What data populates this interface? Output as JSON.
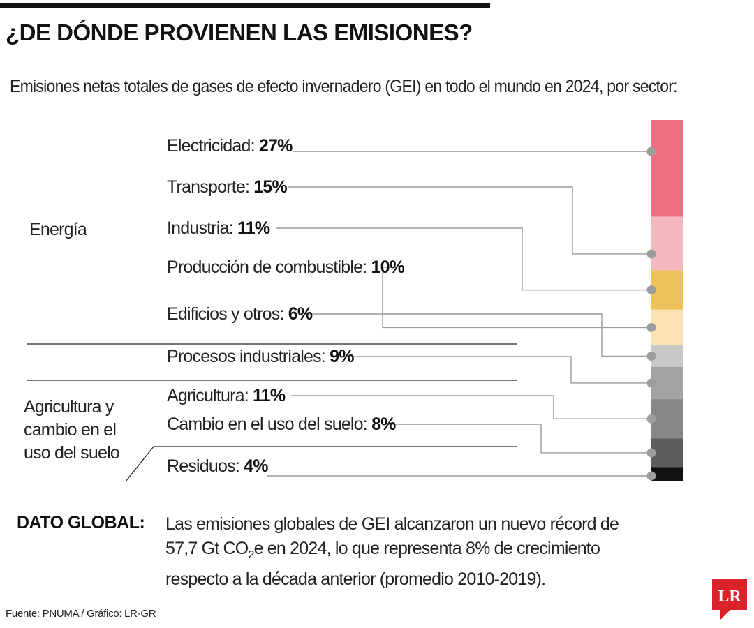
{
  "title": "¿DE DÓNDE PROVIENEN LAS EMISIONES?",
  "subtitle": "Emisiones netas totales de gases de efecto invernadero (GEI) en todo el mundo en 2024, por sector:",
  "chart_data": {
    "type": "bar",
    "orientation": "stacked-vertical",
    "unit": "%",
    "segments": [
      {
        "label": "Electricidad:",
        "value": 27,
        "value_label": "27%",
        "color": "#ec6e7f",
        "group": "Energía"
      },
      {
        "label": "Transporte:",
        "value": 15,
        "value_label": "15%",
        "color": "#f2b9bf",
        "group": "Energía"
      },
      {
        "label": "Industria:",
        "value": 11,
        "value_label": "11%",
        "color": "#ebc35a",
        "group": "Energía"
      },
      {
        "label": "Producción de combustible:",
        "value": 10,
        "value_label": "10%",
        "color": "#fde3b3",
        "group": "Energía"
      },
      {
        "label": "Edificios y otros:",
        "value": 6,
        "value_label": "6%",
        "color": "#c8c8c8",
        "group": "Energía"
      },
      {
        "label": "Procesos industriales:",
        "value": 9,
        "value_label": "9%",
        "color": "#a3a3a3",
        "group": ""
      },
      {
        "label": "Agricultura:",
        "value": 11,
        "value_label": "11%",
        "color": "#878787",
        "group": "Agricultura y cambio en el uso del suelo"
      },
      {
        "label": "Cambio en el uso del suelo:",
        "value": 8,
        "value_label": "8%",
        "color": "#5c5c5c",
        "group": "Agricultura y cambio en el uso del suelo"
      },
      {
        "label": "Residuos:",
        "value": 4,
        "value_label": "4%",
        "color": "#111111",
        "group": ""
      }
    ],
    "groups": [
      {
        "name": "Energía",
        "lines": [
          "Energía"
        ]
      },
      {
        "name": "Agricultura y cambio en el uso del suelo",
        "lines": [
          "Agricultura y",
          "cambio en el",
          "uso del suelo"
        ]
      }
    ],
    "connector_color": "#9a9a9a",
    "dot_color": "#9d9d9d"
  },
  "dato_global": {
    "label": "DATO GLOBAL:",
    "line1": "Las emisiones globales de GEI alcanzaron un nuevo récord de",
    "line2_pre": "57,7 Gt CO",
    "line2_sub": "2",
    "line2_post": "e en 2024, lo que representa 8% de crecimiento",
    "line3": "respecto a la década anterior (promedio 2010-2019)."
  },
  "source": "Fuente: PNUMA / Gráfico: LR-GR",
  "logo": {
    "text": "LR",
    "color": "#d9222a"
  }
}
